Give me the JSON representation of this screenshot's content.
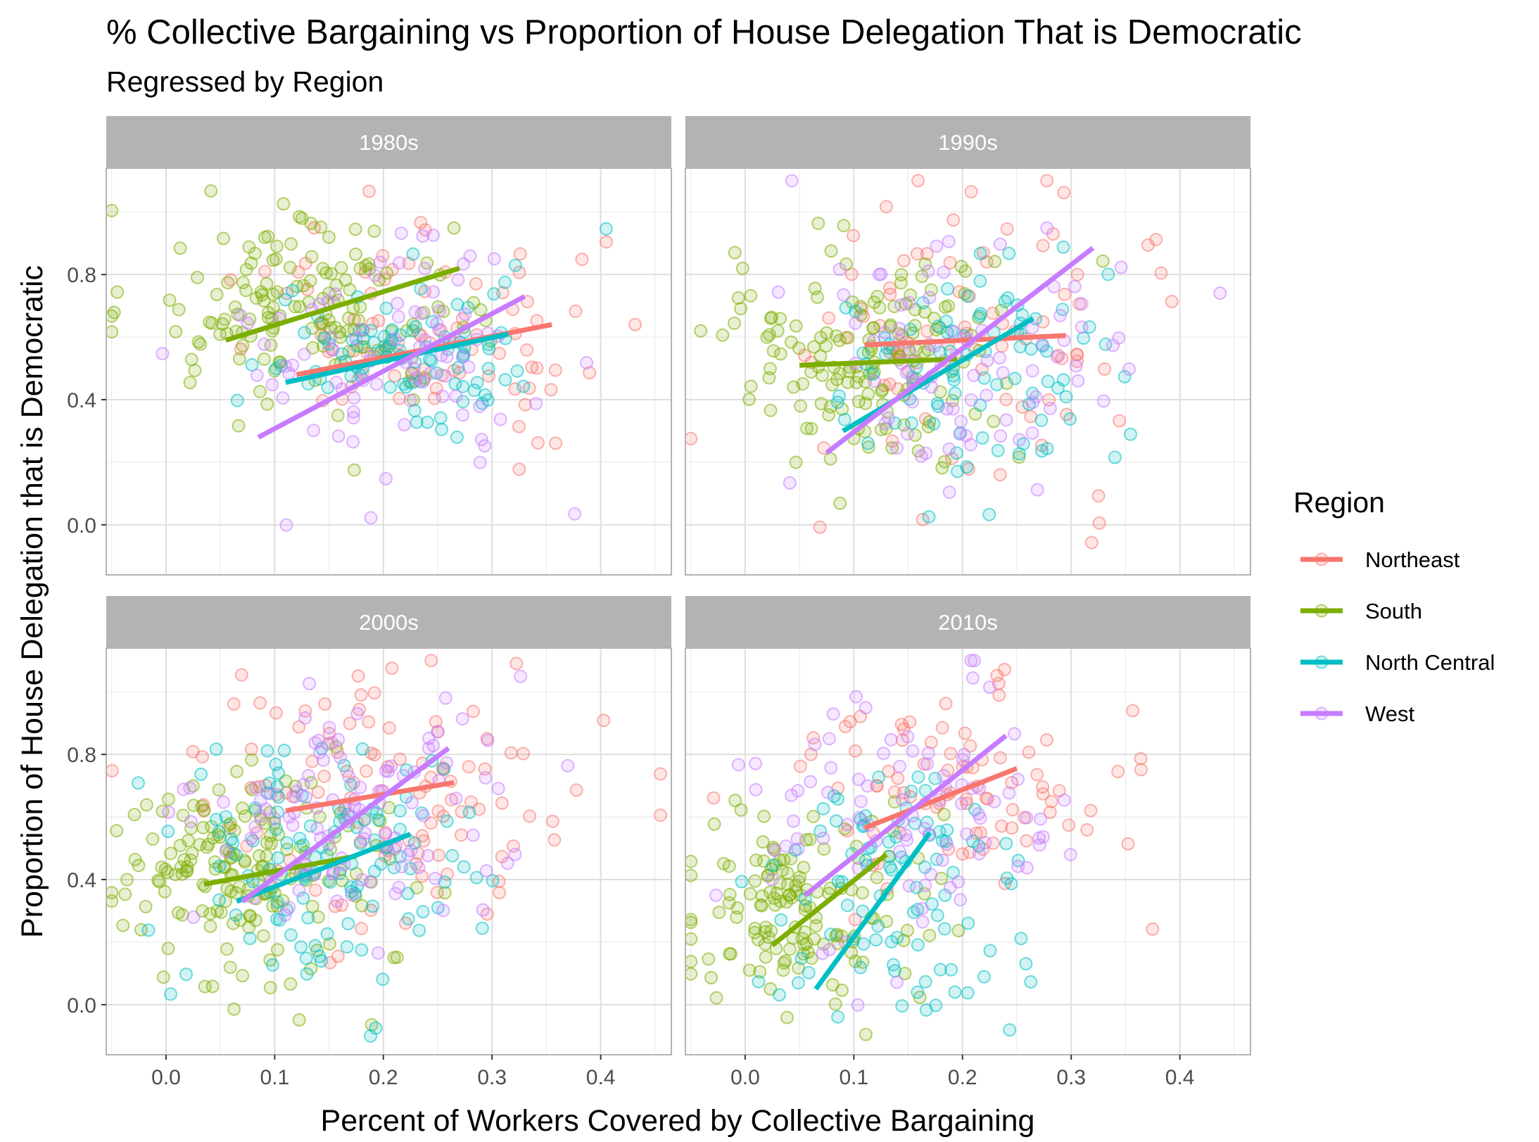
{
  "chart_data": {
    "type": "scatter",
    "title": "% Collective Bargaining vs Proportion of House Delegation That is Democratic",
    "subtitle": "Regressed by Region",
    "xlabel": "Percent of Workers Covered by Collective Bargaining",
    "ylabel": "Proportion of House Delegation that is Democratic",
    "xlim": [
      -0.055,
      0.465
    ],
    "ylim": [
      -0.16,
      1.14
    ],
    "x_ticks": [
      0.0,
      0.1,
      0.2,
      0.3,
      0.4
    ],
    "x_tick_labels": [
      "0.0",
      "0.1",
      "0.2",
      "0.3",
      "0.4"
    ],
    "y_ticks": [
      0.0,
      0.4,
      0.8
    ],
    "y_tick_labels": [
      "0.0",
      "0.4",
      "0.8"
    ],
    "grid": true,
    "legend": {
      "title": "Region",
      "position": "right",
      "entries": [
        {
          "name": "Northeast",
          "color": "#F8766D"
        },
        {
          "name": "South",
          "color": "#7CAE00"
        },
        {
          "name": "North Central",
          "color": "#00BFC4"
        },
        {
          "name": "West",
          "color": "#C77CFF"
        }
      ]
    },
    "panels": [
      {
        "label": "1980s",
        "regression_lines": [
          {
            "region": "Northeast",
            "x": [
              0.12,
              0.355
            ],
            "y": [
              0.48,
              0.64
            ]
          },
          {
            "region": "South",
            "x": [
              0.055,
              0.27
            ],
            "y": [
              0.59,
              0.82
            ]
          },
          {
            "region": "North Central",
            "x": [
              0.11,
              0.315
            ],
            "y": [
              0.455,
              0.61
            ]
          },
          {
            "region": "West",
            "x": [
              0.085,
              0.33
            ],
            "y": [
              0.28,
              0.73
            ]
          }
        ],
        "point_clouds": [
          {
            "region": "Northeast",
            "count": 85,
            "x_mean": 0.25,
            "x_sd": 0.085,
            "y_mean": 0.6,
            "y_sd": 0.17
          },
          {
            "region": "South",
            "count": 150,
            "x_mean": 0.13,
            "x_sd": 0.07,
            "y_mean": 0.68,
            "y_sd": 0.14
          },
          {
            "region": "North Central",
            "count": 90,
            "x_mean": 0.24,
            "x_sd": 0.07,
            "y_mean": 0.54,
            "y_sd": 0.12
          },
          {
            "region": "West",
            "count": 85,
            "x_mean": 0.22,
            "x_sd": 0.08,
            "y_mean": 0.54,
            "y_sd": 0.22
          }
        ]
      },
      {
        "label": "1990s",
        "regression_lines": [
          {
            "region": "Northeast",
            "x": [
              0.11,
              0.295
            ],
            "y": [
              0.575,
              0.605
            ]
          },
          {
            "region": "South",
            "x": [
              0.05,
              0.195
            ],
            "y": [
              0.51,
              0.53
            ]
          },
          {
            "region": "North Central",
            "x": [
              0.09,
              0.265
            ],
            "y": [
              0.3,
              0.66
            ]
          },
          {
            "region": "West",
            "x": [
              0.075,
              0.32
            ],
            "y": [
              0.23,
              0.885
            ]
          }
        ],
        "point_clouds": [
          {
            "region": "Northeast",
            "count": 85,
            "x_mean": 0.2,
            "x_sd": 0.08,
            "y_mean": 0.59,
            "y_sd": 0.25
          },
          {
            "region": "South",
            "count": 150,
            "x_mean": 0.11,
            "x_sd": 0.07,
            "y_mean": 0.52,
            "y_sd": 0.17
          },
          {
            "region": "North Central",
            "count": 90,
            "x_mean": 0.2,
            "x_sd": 0.07,
            "y_mean": 0.5,
            "y_sd": 0.2
          },
          {
            "region": "West",
            "count": 85,
            "x_mean": 0.2,
            "x_sd": 0.08,
            "y_mean": 0.56,
            "y_sd": 0.22
          }
        ]
      },
      {
        "label": "2000s",
        "regression_lines": [
          {
            "region": "Northeast",
            "x": [
              0.11,
              0.265
            ],
            "y": [
              0.62,
              0.71
            ]
          },
          {
            "region": "South",
            "x": [
              0.035,
              0.175
            ],
            "y": [
              0.385,
              0.475
            ]
          },
          {
            "region": "North Central",
            "x": [
              0.065,
              0.225
            ],
            "y": [
              0.33,
              0.545
            ]
          },
          {
            "region": "West",
            "x": [
              0.07,
              0.26
            ],
            "y": [
              0.33,
              0.82
            ]
          }
        ],
        "point_clouds": [
          {
            "region": "Northeast",
            "count": 110,
            "x_mean": 0.22,
            "x_sd": 0.09,
            "y_mean": 0.68,
            "y_sd": 0.2
          },
          {
            "region": "South",
            "count": 170,
            "x_mean": 0.07,
            "x_sd": 0.065,
            "y_mean": 0.42,
            "y_sd": 0.15
          },
          {
            "region": "North Central",
            "count": 120,
            "x_mean": 0.15,
            "x_sd": 0.07,
            "y_mean": 0.48,
            "y_sd": 0.2
          },
          {
            "region": "West",
            "count": 110,
            "x_mean": 0.18,
            "x_sd": 0.07,
            "y_mean": 0.6,
            "y_sd": 0.18
          }
        ]
      },
      {
        "label": "2010s",
        "regression_lines": [
          {
            "region": "Northeast",
            "x": [
              0.11,
              0.25
            ],
            "y": [
              0.565,
              0.755
            ]
          },
          {
            "region": "South",
            "x": [
              0.025,
              0.13
            ],
            "y": [
              0.19,
              0.48
            ]
          },
          {
            "region": "North Central",
            "x": [
              0.065,
              0.17
            ],
            "y": [
              0.05,
              0.55
            ]
          },
          {
            "region": "West",
            "x": [
              0.055,
              0.24
            ],
            "y": [
              0.35,
              0.86
            ]
          }
        ],
        "point_clouds": [
          {
            "region": "Northeast",
            "count": 85,
            "x_mean": 0.2,
            "x_sd": 0.075,
            "y_mean": 0.72,
            "y_sd": 0.16
          },
          {
            "region": "South",
            "count": 140,
            "x_mean": 0.05,
            "x_sd": 0.055,
            "y_mean": 0.3,
            "y_sd": 0.16
          },
          {
            "region": "North Central",
            "count": 95,
            "x_mean": 0.14,
            "x_sd": 0.06,
            "y_mean": 0.35,
            "y_sd": 0.22
          },
          {
            "region": "West",
            "count": 90,
            "x_mean": 0.16,
            "x_sd": 0.07,
            "y_mean": 0.62,
            "y_sd": 0.22
          }
        ]
      }
    ]
  }
}
